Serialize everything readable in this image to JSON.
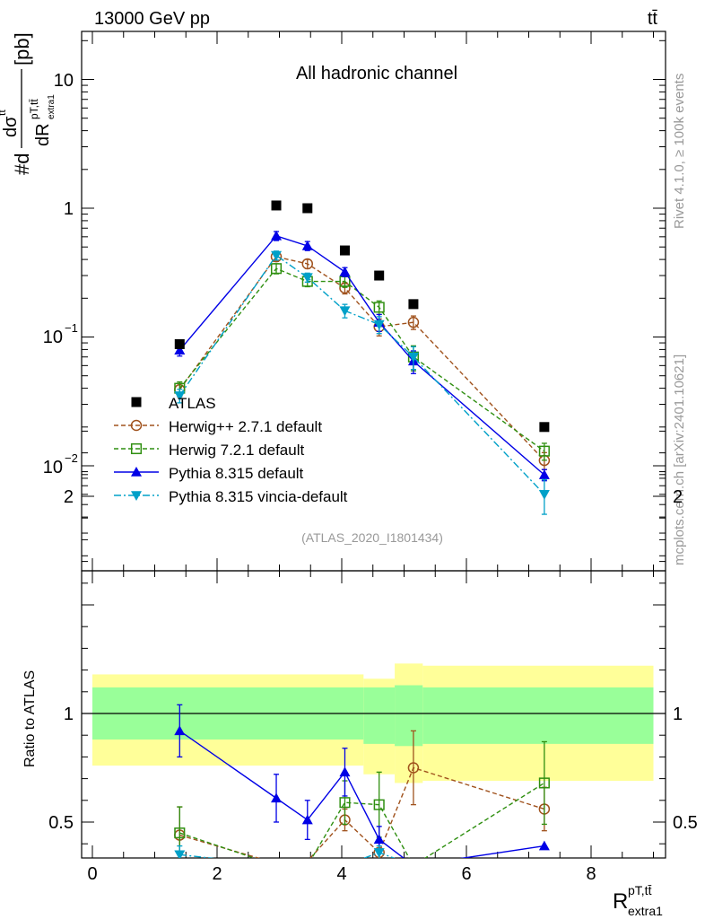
{
  "header": {
    "energy_label": "13000 GeV pp",
    "process_label": "tt̄",
    "channel_label": "All hadronic channel",
    "analysis_label": "(ATLAS_2020_I1801434)",
    "rivet_label": "Rivet 4.1.0, ≥ 100k events",
    "mcplots_label": "mcplots.cern.ch [arXiv:2401.10621]"
  },
  "chart_data": [
    {
      "type": "scatter",
      "panel": "main",
      "title": "All hadronic channel",
      "xlabel": "R extra1 (pT, tt̄)",
      "ylabel": "#d dσ^tt̄ / dR^(pT,tt̄)_extra1 [pb]",
      "y_scale": "log",
      "xlim": [
        -0.2,
        9.1
      ],
      "ylim": [
        0.0008,
        25
      ],
      "y_tick_labels": [
        "10^-2",
        "10^-1",
        "1",
        "10"
      ],
      "reference": {
        "name": "ATLAS",
        "x": [
          1.4,
          2.95,
          3.45,
          4.05,
          4.6,
          5.15,
          7.25
        ],
        "y": [
          0.088,
          1.05,
          1.0,
          0.47,
          0.3,
          0.18,
          0.02
        ],
        "marker": "square",
        "color": "#000000"
      },
      "series": [
        {
          "name": "Herwig++ 2.7.1 default",
          "marker": "circle-open",
          "color": "#a0521d",
          "dash": "5,3",
          "x": [
            1.4,
            2.95,
            3.45,
            4.05,
            4.6,
            5.15,
            7.25
          ],
          "y": [
            0.039,
            0.42,
            0.37,
            0.24,
            0.12,
            0.13,
            0.011
          ],
          "err": [
            0.12,
            0.08,
            0.08,
            0.1,
            0.15,
            0.12,
            0.15
          ]
        },
        {
          "name": "Herwig 7.2.1 default",
          "marker": "square-open",
          "color": "#2f8f10",
          "dash": "5,3",
          "x": [
            1.4,
            2.95,
            3.45,
            4.05,
            4.6,
            5.15,
            7.25
          ],
          "y": [
            0.04,
            0.34,
            0.27,
            0.27,
            0.17,
            0.07,
            0.013
          ],
          "err": [
            0.12,
            0.09,
            0.09,
            0.1,
            0.12,
            0.22,
            0.15
          ]
        },
        {
          "name": "Pythia 8.315 default",
          "marker": "triangle-up",
          "color": "#0000e6",
          "dash": "",
          "x": [
            1.4,
            2.95,
            3.45,
            4.05,
            4.6,
            5.15,
            7.25
          ],
          "y": [
            0.079,
            0.61,
            0.51,
            0.32,
            0.13,
            0.065,
            0.0085
          ],
          "err": [
            0.1,
            0.08,
            0.08,
            0.08,
            0.15,
            0.2,
            0.1
          ]
        },
        {
          "name": "Pythia 8.315 vincia-default",
          "marker": "triangle-down",
          "color": "#00a0c8",
          "dash": "8,3,2,3",
          "x": [
            1.4,
            2.95,
            3.45,
            4.05,
            4.6,
            5.15,
            7.25
          ],
          "y": [
            0.035,
            0.43,
            0.29,
            0.16,
            0.125,
            0.07,
            0.006
          ],
          "err": [
            0.12,
            0.08,
            0.08,
            0.12,
            0.15,
            0.2,
            0.3
          ]
        }
      ]
    },
    {
      "type": "scatter",
      "panel": "ratio",
      "ylabel": "Ratio to ATLAS",
      "xlabel": "R^(pT,tt̄)_extra1",
      "xlim": [
        -0.2,
        9.1
      ],
      "ylim": [
        0.34,
        2.34
      ],
      "x_ticks": [
        0,
        2,
        4,
        6,
        8
      ],
      "x_tick_labels": [
        "0",
        "2",
        "4",
        "6",
        "8"
      ],
      "y_ticks": [
        0.5,
        1,
        2
      ],
      "y_tick_labels": [
        "0.5",
        "1",
        "2"
      ],
      "bands": {
        "edges": [
          0,
          4.35,
          4.85,
          5.3,
          9.0
        ],
        "stat_lo": [
          0.88,
          0.86,
          0.85,
          0.86
        ],
        "stat_hi": [
          1.12,
          1.12,
          1.13,
          1.12
        ],
        "total_lo": [
          0.76,
          0.72,
          0.68,
          0.69
        ],
        "total_hi": [
          1.18,
          1.16,
          1.23,
          1.22
        ],
        "stat_color": "#99ff99",
        "total_color": "#ffff99"
      },
      "series": [
        {
          "name": "Herwig++ 2.7.1 default",
          "color": "#a0521d",
          "dash": "5,3",
          "marker": "circle-open",
          "x": [
            1.4,
            2.95,
            3.45,
            4.05,
            4.6,
            5.15,
            7.25
          ],
          "y": [
            0.44,
            0.31,
            0.32,
            0.51,
            0.36,
            0.75,
            0.56
          ],
          "err": [
            0.13,
            0.0,
            0.0,
            0.05,
            0.05,
            0.17,
            0.1
          ]
        },
        {
          "name": "Herwig 7.2.1 default",
          "color": "#2f8f10",
          "dash": "5,3",
          "marker": "square-open",
          "x": [
            1.4,
            2.95,
            3.45,
            4.05,
            4.6,
            5.15,
            7.25
          ],
          "y": [
            0.45,
            0.3,
            0.3,
            0.59,
            0.58,
            0.3,
            0.68
          ],
          "err": [
            0.12,
            0.0,
            0.0,
            0.1,
            0.15,
            0.0,
            0.19
          ]
        },
        {
          "name": "Pythia 8.315 default",
          "color": "#0000e6",
          "dash": "",
          "marker": "triangle-up",
          "x": [
            1.4,
            2.95,
            3.45,
            4.05,
            4.6,
            5.15,
            7.25
          ],
          "y": [
            0.92,
            0.61,
            0.51,
            0.73,
            0.42,
            0.3,
            0.39
          ],
          "err": [
            0.12,
            0.11,
            0.09,
            0.11,
            0.06,
            0.0,
            0.0
          ]
        },
        {
          "name": "Pythia 8.315 vincia-default",
          "color": "#00a0c8",
          "dash": "8,3,2,3",
          "marker": "triangle-down",
          "x": [
            1.4,
            2.95,
            3.45,
            4.05,
            4.6,
            5.15,
            7.25
          ],
          "y": [
            0.35,
            0.3,
            0.3,
            0.3,
            0.36,
            0.3,
            0.3
          ],
          "err": [
            0.04,
            0.0,
            0.0,
            0.0,
            0.03,
            0.0,
            0.0
          ]
        }
      ]
    }
  ],
  "legend": {
    "placement": "lower-left",
    "entries": [
      {
        "label": "ATLAS",
        "marker": "square",
        "color": "#000000",
        "dash": "none"
      },
      {
        "label": "Herwig++ 2.7.1 default",
        "marker": "circle-open",
        "color": "#a0521d",
        "dash": "5,3"
      },
      {
        "label": "Herwig 7.2.1 default",
        "marker": "square-open",
        "color": "#2f8f10",
        "dash": "5,3"
      },
      {
        "label": "Pythia 8.315 default",
        "marker": "triangle-up",
        "color": "#0000e6",
        "dash": ""
      },
      {
        "label": "Pythia 8.315 vincia-default",
        "marker": "triangle-down",
        "color": "#00a0c8",
        "dash": "8,3,2,3"
      }
    ]
  }
}
